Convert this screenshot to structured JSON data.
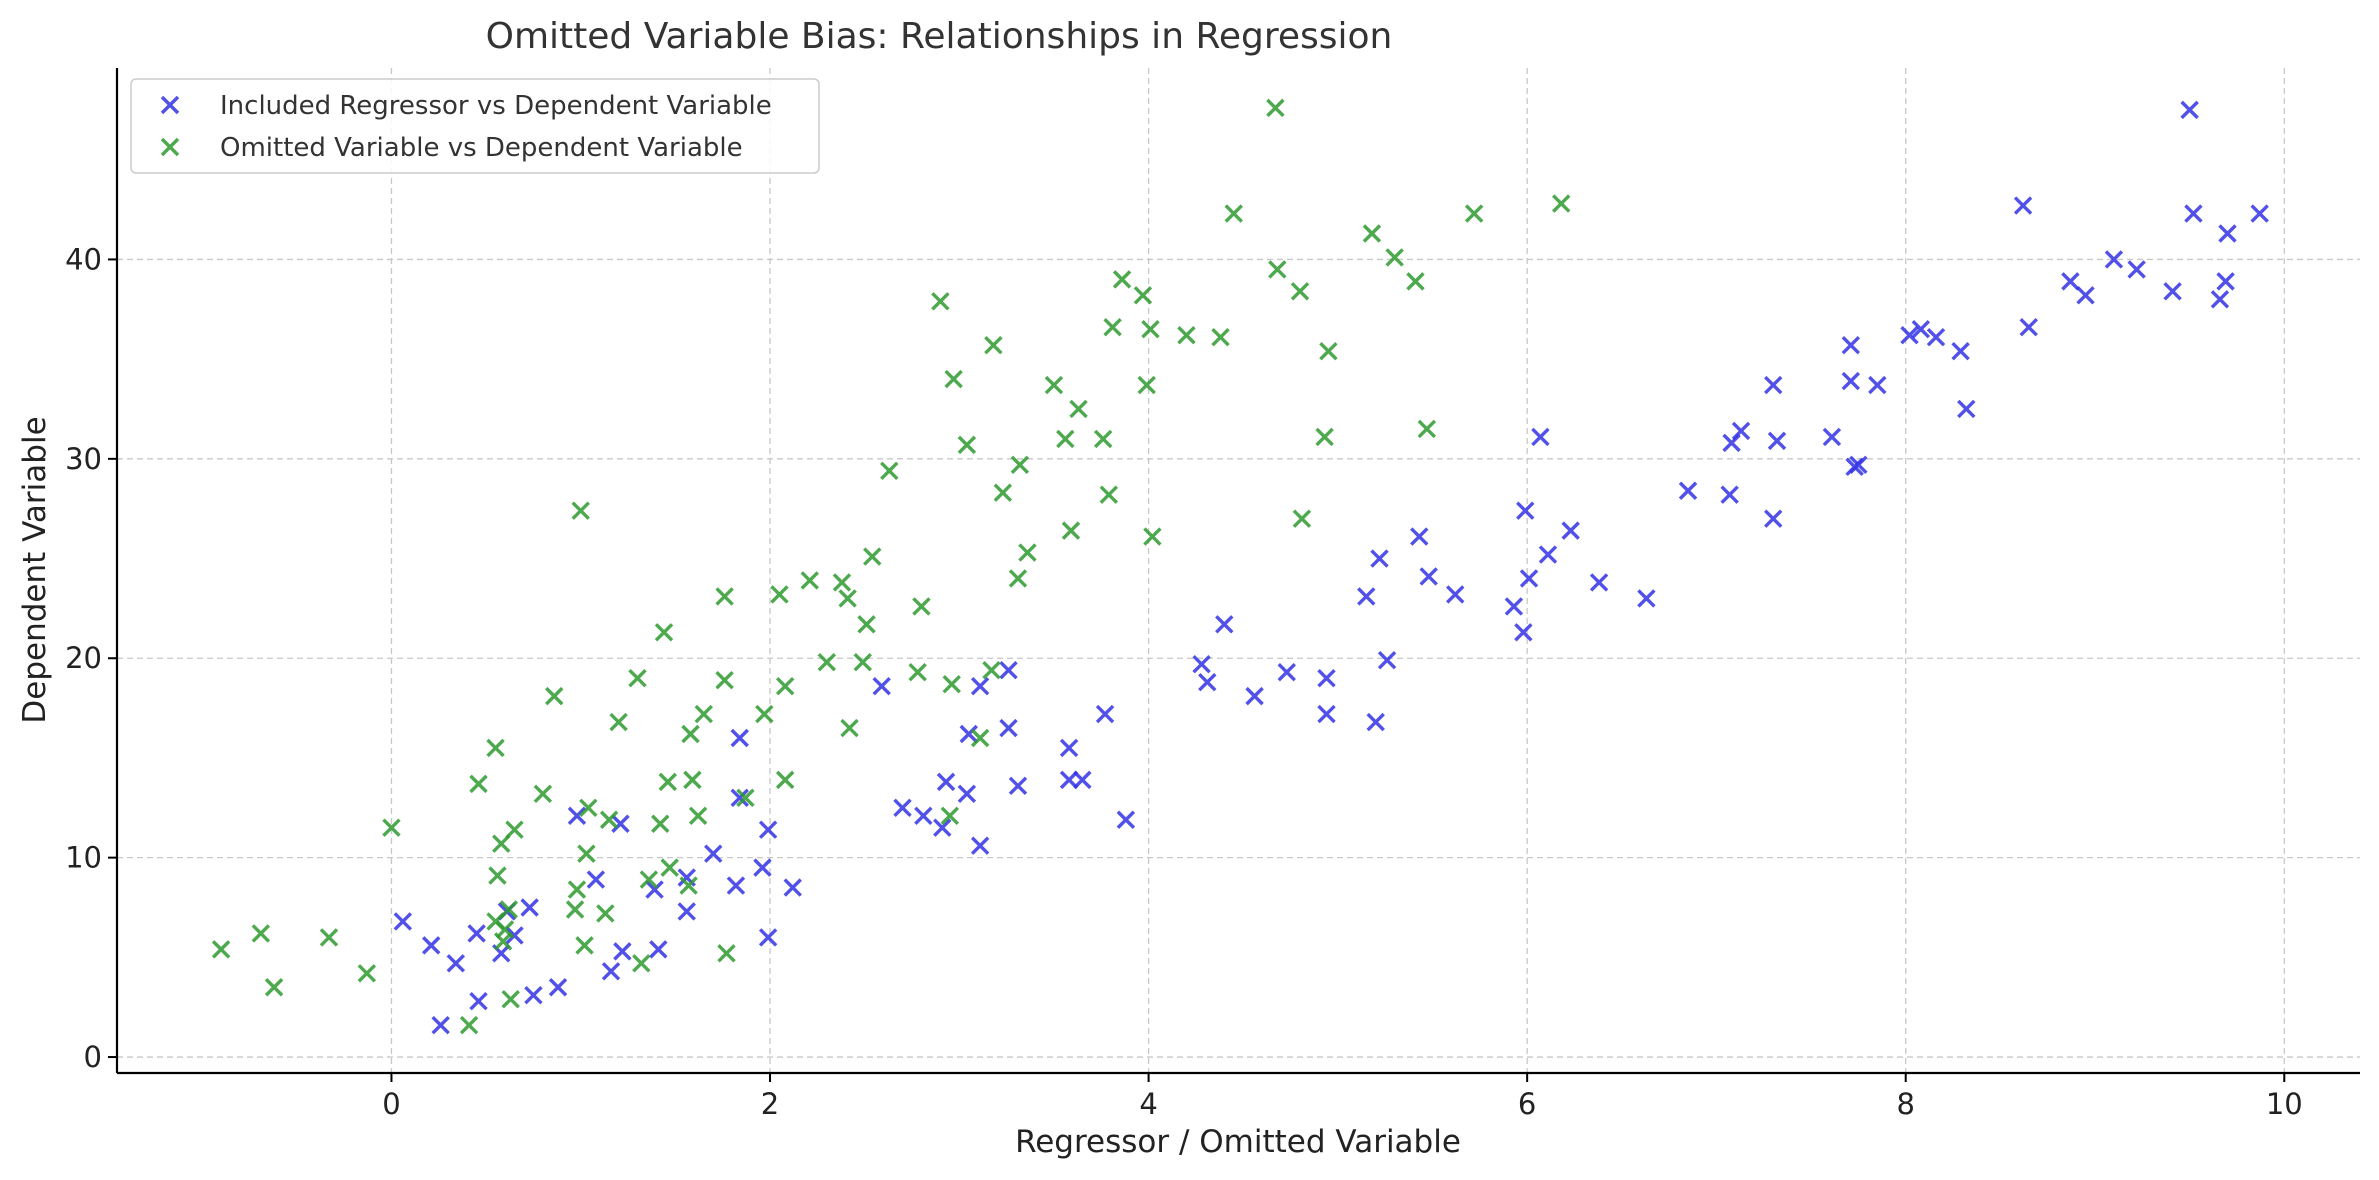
{
  "chart_data": {
    "type": "scatter",
    "title": "Omitted Variable Bias: Relationships in Regression",
    "xlabel": "Regressor / Omitted Variable",
    "ylabel": "Dependent Variable",
    "xlim": [
      -1.45,
      10.4
    ],
    "ylim": [
      -0.8,
      49.6
    ],
    "xticks": [
      0,
      2,
      4,
      6,
      8,
      10
    ],
    "yticks": [
      0,
      10,
      20,
      30,
      40
    ],
    "grid": true,
    "legend_position": "top-left",
    "marker": "x",
    "series": [
      {
        "name": "Included Regressor vs Dependent Variable",
        "color": "#3333e6",
        "points": [
          [
            0.06,
            6.8
          ],
          [
            0.21,
            5.6
          ],
          [
            0.26,
            1.6
          ],
          [
            0.34,
            4.7
          ],
          [
            0.45,
            6.2
          ],
          [
            0.46,
            2.8
          ],
          [
            0.58,
            5.2
          ],
          [
            0.61,
            7.3
          ],
          [
            0.65,
            6.1
          ],
          [
            0.73,
            7.5
          ],
          [
            0.75,
            3.1
          ],
          [
            0.88,
            3.5
          ],
          [
            0.98,
            12.1
          ],
          [
            1.08,
            8.9
          ],
          [
            1.16,
            4.3
          ],
          [
            1.21,
            11.7
          ],
          [
            1.22,
            5.3
          ],
          [
            1.39,
            8.4
          ],
          [
            1.41,
            5.4
          ],
          [
            1.56,
            9.0
          ],
          [
            1.56,
            7.3
          ],
          [
            1.7,
            10.2
          ],
          [
            1.82,
            8.6
          ],
          [
            1.84,
            16.0
          ],
          [
            1.84,
            13.0
          ],
          [
            1.96,
            9.5
          ],
          [
            1.99,
            11.4
          ],
          [
            1.99,
            6.0
          ],
          [
            2.12,
            8.5
          ],
          [
            2.59,
            18.6
          ],
          [
            2.7,
            12.5
          ],
          [
            2.81,
            12.1
          ],
          [
            2.91,
            11.5
          ],
          [
            2.93,
            13.8
          ],
          [
            3.04,
            13.2
          ],
          [
            3.05,
            16.2
          ],
          [
            3.11,
            18.6
          ],
          [
            3.11,
            10.6
          ],
          [
            3.26,
            16.5
          ],
          [
            3.26,
            19.4
          ],
          [
            3.31,
            13.6
          ],
          [
            3.58,
            15.5
          ],
          [
            3.58,
            13.9
          ],
          [
            3.65,
            13.9
          ],
          [
            3.77,
            17.2
          ],
          [
            3.88,
            11.9
          ],
          [
            4.28,
            19.7
          ],
          [
            4.31,
            18.8
          ],
          [
            4.4,
            21.7
          ],
          [
            4.56,
            18.1
          ],
          [
            4.73,
            19.3
          ],
          [
            4.94,
            19.0
          ],
          [
            4.94,
            17.2
          ],
          [
            5.15,
            23.1
          ],
          [
            5.2,
            16.8
          ],
          [
            5.22,
            25.0
          ],
          [
            5.26,
            19.9
          ],
          [
            5.43,
            26.1
          ],
          [
            5.48,
            24.1
          ],
          [
            5.62,
            23.2
          ],
          [
            5.93,
            22.6
          ],
          [
            5.98,
            21.3
          ],
          [
            5.99,
            27.4
          ],
          [
            6.01,
            24.0
          ],
          [
            6.07,
            31.1
          ],
          [
            6.11,
            25.2
          ],
          [
            6.23,
            26.4
          ],
          [
            6.38,
            23.8
          ],
          [
            6.63,
            23.0
          ],
          [
            6.85,
            28.4
          ],
          [
            7.07,
            28.2
          ],
          [
            7.08,
            30.8
          ],
          [
            7.13,
            31.4
          ],
          [
            7.3,
            33.7
          ],
          [
            7.3,
            27.0
          ],
          [
            7.32,
            30.9
          ],
          [
            7.61,
            31.1
          ],
          [
            7.71,
            35.7
          ],
          [
            7.71,
            33.9
          ],
          [
            7.73,
            29.6
          ],
          [
            7.75,
            29.7
          ],
          [
            7.85,
            33.7
          ],
          [
            8.02,
            36.2
          ],
          [
            8.08,
            36.5
          ],
          [
            8.16,
            36.1
          ],
          [
            8.29,
            35.4
          ],
          [
            8.32,
            32.5
          ],
          [
            8.62,
            42.7
          ],
          [
            8.65,
            36.6
          ],
          [
            8.87,
            38.9
          ],
          [
            8.95,
            38.2
          ],
          [
            9.1,
            40.0
          ],
          [
            9.22,
            39.5
          ],
          [
            9.41,
            38.4
          ],
          [
            9.5,
            47.5
          ],
          [
            9.52,
            42.3
          ],
          [
            9.66,
            38.0
          ],
          [
            9.69,
            38.9
          ],
          [
            9.7,
            41.3
          ],
          [
            9.87,
            42.3
          ]
        ]
      },
      {
        "name": "Omitted Variable vs Dependent Variable",
        "color": "#2e9a2e",
        "points": [
          [
            -0.9,
            5.4
          ],
          [
            -0.69,
            6.2
          ],
          [
            -0.62,
            3.5
          ],
          [
            -0.33,
            6.0
          ],
          [
            -0.13,
            4.2
          ],
          [
            0.0,
            11.5
          ],
          [
            0.41,
            1.6
          ],
          [
            0.46,
            13.7
          ],
          [
            0.55,
            15.5
          ],
          [
            0.55,
            6.8
          ],
          [
            0.56,
            9.1
          ],
          [
            0.58,
            10.7
          ],
          [
            0.59,
            5.8
          ],
          [
            0.6,
            6.4
          ],
          [
            0.62,
            7.4
          ],
          [
            0.63,
            2.9
          ],
          [
            0.65,
            11.4
          ],
          [
            0.8,
            13.2
          ],
          [
            0.86,
            18.1
          ],
          [
            0.97,
            7.4
          ],
          [
            0.98,
            8.4
          ],
          [
            1.0,
            27.4
          ],
          [
            1.02,
            5.6
          ],
          [
            1.03,
            10.2
          ],
          [
            1.04,
            12.5
          ],
          [
            1.13,
            7.2
          ],
          [
            1.15,
            11.9
          ],
          [
            1.2,
            16.8
          ],
          [
            1.3,
            19.0
          ],
          [
            1.32,
            4.7
          ],
          [
            1.36,
            8.9
          ],
          [
            1.42,
            11.7
          ],
          [
            1.44,
            21.3
          ],
          [
            1.46,
            13.8
          ],
          [
            1.47,
            9.5
          ],
          [
            1.57,
            8.6
          ],
          [
            1.58,
            16.2
          ],
          [
            1.59,
            13.9
          ],
          [
            1.62,
            12.1
          ],
          [
            1.65,
            17.2
          ],
          [
            1.76,
            23.1
          ],
          [
            1.76,
            18.9
          ],
          [
            1.77,
            5.2
          ],
          [
            1.87,
            13.0
          ],
          [
            1.97,
            17.2
          ],
          [
            2.05,
            23.2
          ],
          [
            2.08,
            18.6
          ],
          [
            2.08,
            13.9
          ],
          [
            2.21,
            23.9
          ],
          [
            2.3,
            19.8
          ],
          [
            2.38,
            23.8
          ],
          [
            2.41,
            23.0
          ],
          [
            2.42,
            16.5
          ],
          [
            2.49,
            19.8
          ],
          [
            2.51,
            21.7
          ],
          [
            2.54,
            25.1
          ],
          [
            2.63,
            29.4
          ],
          [
            2.78,
            19.3
          ],
          [
            2.8,
            22.6
          ],
          [
            2.9,
            37.9
          ],
          [
            2.95,
            12.1
          ],
          [
            2.96,
            18.7
          ],
          [
            2.97,
            34.0
          ],
          [
            3.04,
            30.7
          ],
          [
            3.11,
            16.0
          ],
          [
            3.17,
            19.4
          ],
          [
            3.18,
            35.7
          ],
          [
            3.23,
            28.3
          ],
          [
            3.31,
            24.0
          ],
          [
            3.32,
            29.7
          ],
          [
            3.36,
            25.3
          ],
          [
            3.5,
            33.7
          ],
          [
            3.56,
            31.0
          ],
          [
            3.59,
            26.4
          ],
          [
            3.63,
            32.5
          ],
          [
            3.76,
            31.0
          ],
          [
            3.79,
            28.2
          ],
          [
            3.81,
            36.6
          ],
          [
            3.86,
            39.0
          ],
          [
            3.97,
            38.2
          ],
          [
            3.99,
            33.7
          ],
          [
            4.01,
            36.5
          ],
          [
            4.02,
            26.1
          ],
          [
            4.2,
            36.2
          ],
          [
            4.38,
            36.1
          ],
          [
            4.45,
            42.3
          ],
          [
            4.67,
            47.6
          ],
          [
            4.68,
            39.5
          ],
          [
            4.8,
            38.4
          ],
          [
            4.81,
            27.0
          ],
          [
            4.93,
            31.1
          ],
          [
            4.95,
            35.4
          ],
          [
            5.18,
            41.3
          ],
          [
            5.3,
            40.1
          ],
          [
            5.41,
            38.9
          ],
          [
            5.47,
            31.5
          ],
          [
            5.72,
            42.3
          ],
          [
            6.18,
            42.8
          ]
        ]
      }
    ]
  }
}
